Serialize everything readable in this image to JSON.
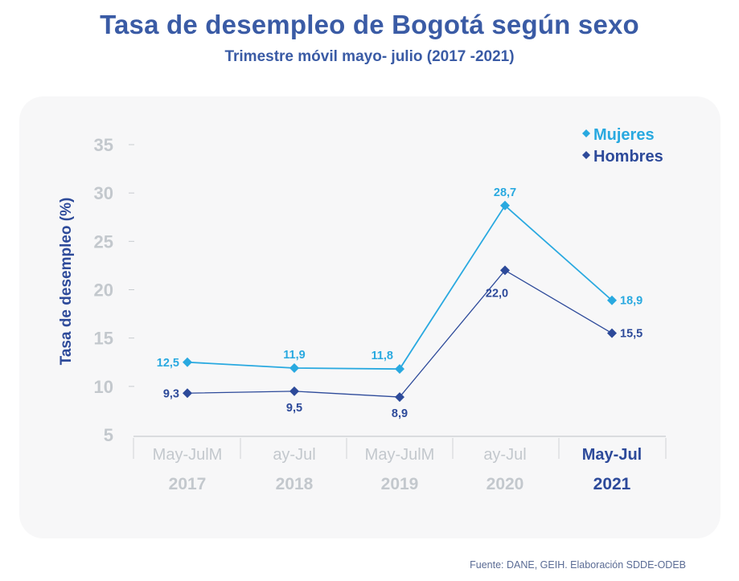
{
  "header": {
    "title": "Tasa de desempleo de Bogotá según sexo",
    "subtitle": "Trimestre móvil mayo- julio  (2017 -2021)"
  },
  "footer": {
    "source": "Fuente: DANE, GEIH. Elaboración SDDE-ODEB"
  },
  "colors": {
    "mujeres": "#29a9e0",
    "hombres": "#2d4a9a",
    "axis_text": "#c3c8cd",
    "highlight_text": "#2d4a9a"
  },
  "chart_data": {
    "type": "line",
    "title": "Tasa de desempleo de Bogotá según sexo",
    "subtitle": "Trimestre móvil mayo- julio  (2017 -2021)",
    "xlabel": "",
    "ylabel": "Tasa de desempleo (%)",
    "ylim": [
      5,
      35
    ],
    "yticks": [
      "5",
      "10",
      "15",
      "20",
      "25",
      "30",
      "35"
    ],
    "ytick_values": [
      5,
      10,
      15,
      20,
      25,
      30,
      35
    ],
    "categories": [
      "May-Jul 2017",
      "May-Jul 2018",
      "May-Jul 2019",
      "May-Jul 2020",
      "May-Jul 2021"
    ],
    "category_labels_line1": [
      "May-JulM",
      "ay-Jul",
      "May-JulM",
      "ay-Jul",
      "May-Jul"
    ],
    "category_labels_line2": [
      "2017",
      "2018",
      "2019",
      "2020",
      "2021"
    ],
    "highlighted_category": 4,
    "grid": false,
    "legend_position": "top-right",
    "series": [
      {
        "name": "Mujeres",
        "legend_label": "Mujeres",
        "values": [
          12.5,
          11.9,
          11.8,
          28.7,
          18.9
        ],
        "labels": [
          "12,5",
          "11,9",
          "11,8",
          "28,7",
          "18,9"
        ]
      },
      {
        "name": "Hombres",
        "legend_label": "Hombres",
        "values": [
          9.3,
          9.5,
          8.9,
          22.0,
          15.5
        ],
        "labels": [
          "9,3",
          "9,5",
          "8,9",
          "22,0",
          "15,5"
        ]
      }
    ]
  }
}
